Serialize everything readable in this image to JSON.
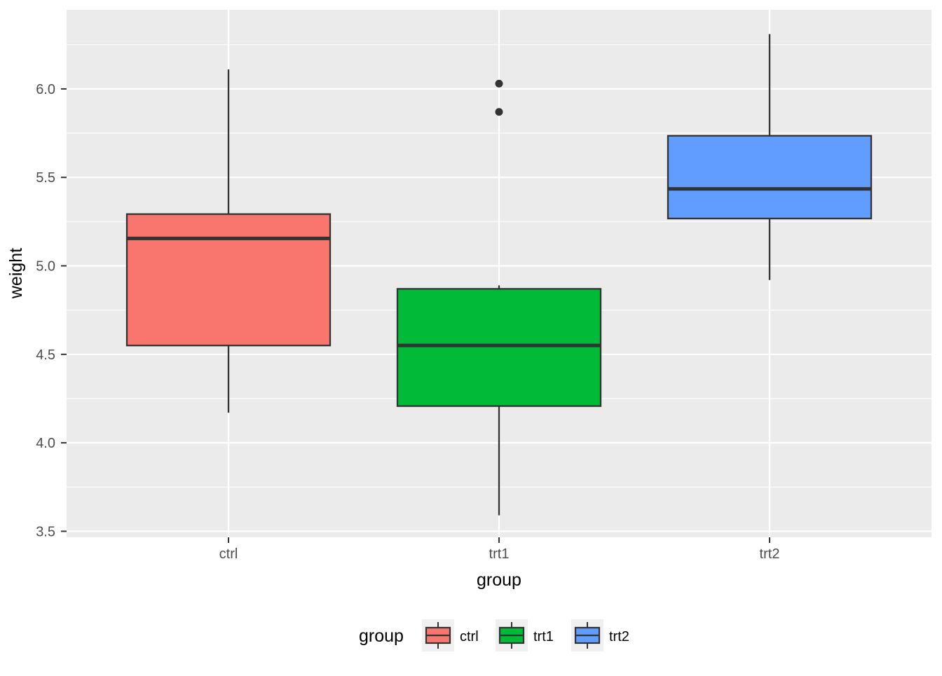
{
  "chart_data": {
    "type": "boxplot",
    "title": "",
    "xlabel": "group",
    "ylabel": "weight",
    "categories": [
      "ctrl",
      "trt1",
      "trt2"
    ],
    "series": [
      {
        "name": "ctrl",
        "fill": "#F8766D",
        "whisker_low": 4.17,
        "q1": 4.55,
        "median": 5.155,
        "q3": 5.2925,
        "whisker_high": 6.11,
        "outliers": []
      },
      {
        "name": "trt1",
        "fill": "#00BA38",
        "whisker_low": 3.59,
        "q1": 4.2075,
        "median": 4.55,
        "q3": 4.87,
        "whisker_high": 4.89,
        "outliers": [
          5.87,
          6.03
        ]
      },
      {
        "name": "trt2",
        "fill": "#619CFF",
        "whisker_low": 4.92,
        "q1": 5.2675,
        "median": 5.435,
        "q3": 5.735,
        "whisker_high": 6.31,
        "outliers": []
      }
    ],
    "y_axis": {
      "tick_labels": [
        "6.0",
        "5.5",
        "5.0",
        "4.5",
        "4.0",
        "3.5"
      ],
      "tick_values": [
        6.0,
        5.5,
        5.0,
        4.5,
        4.0,
        3.5
      ],
      "minor_tick_values": [
        6.25,
        5.75,
        5.25,
        4.75,
        4.25,
        3.75
      ],
      "range": [
        3.466,
        6.447
      ]
    },
    "grid": "white major+minor horizontal lines, white major vertical lines at categories",
    "legend": {
      "title": "group",
      "position": "bottom",
      "entries": [
        {
          "label": "ctrl",
          "fill": "#F8766D"
        },
        {
          "label": "trt1",
          "fill": "#00BA38"
        },
        {
          "label": "trt2",
          "fill": "#619CFF"
        }
      ]
    }
  },
  "styles": {
    "panel_bg": "#EBEBEB",
    "grid_color": "#FFFFFF",
    "box_stroke": "#333333",
    "median_stroke": "#333333",
    "outlier_color": "#333333",
    "axis_tick_color": "#333333",
    "axis_text_color": "#4D4D4D",
    "axis_title_color": "#000000",
    "legend_key_bg": "#F0F0F0",
    "legend_text_color": "#000000"
  }
}
